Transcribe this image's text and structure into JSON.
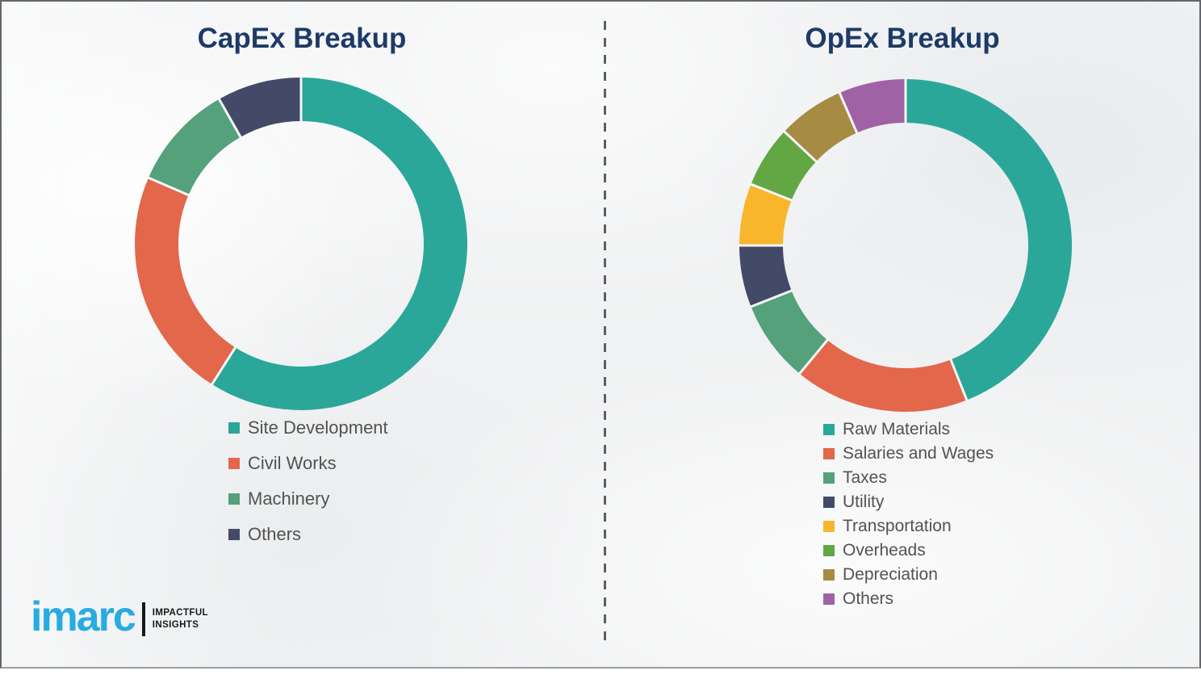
{
  "background_color": "#f0f1f2",
  "title_color": "#1e3a67",
  "legend_text_color": "#525252",
  "divider": {
    "style": "vertical-dashed-line",
    "color": "#5b6066"
  },
  "chart_data": [
    {
      "id": "capex",
      "type": "pie",
      "subtype": "donut",
      "title": "CapEx Breakup",
      "legend_position": "below-left",
      "start_angle_deg": 0,
      "direction": "clockwise",
      "segments": [
        {
          "label": "Site Development",
          "value": 59,
          "color": "#2BA79A"
        },
        {
          "label": "Civil Works",
          "value": 22.5,
          "color": "#E3674B"
        },
        {
          "label": "Machinery",
          "value": 10.3,
          "color": "#55A17C"
        },
        {
          "label": "Others",
          "value": 8.2,
          "color": "#424A68"
        }
      ]
    },
    {
      "id": "opex",
      "type": "pie",
      "subtype": "donut",
      "title": "OpEx Breakup",
      "legend_position": "below-left",
      "start_angle_deg": 0,
      "direction": "clockwise",
      "segments": [
        {
          "label": "Raw Materials",
          "value": 44,
          "color": "#2BA79A"
        },
        {
          "label": "Salaries and Wages",
          "value": 17,
          "color": "#E3674B"
        },
        {
          "label": "Taxes",
          "value": 8,
          "color": "#55A17C"
        },
        {
          "label": "Utility",
          "value": 6,
          "color": "#424A68"
        },
        {
          "label": "Transportation",
          "value": 6,
          "color": "#F8B62D"
        },
        {
          "label": "Overheads",
          "value": 6,
          "color": "#63A644"
        },
        {
          "label": "Depreciation",
          "value": 6.5,
          "color": "#A58C42"
        },
        {
          "label": "Others",
          "value": 6.5,
          "color": "#9F63A5"
        }
      ]
    }
  ],
  "branding": {
    "logo_text": "imarc",
    "tagline_line1": "IMPACTFUL",
    "tagline_line2": "INSIGHTS",
    "logo_color": "#29abe2"
  }
}
